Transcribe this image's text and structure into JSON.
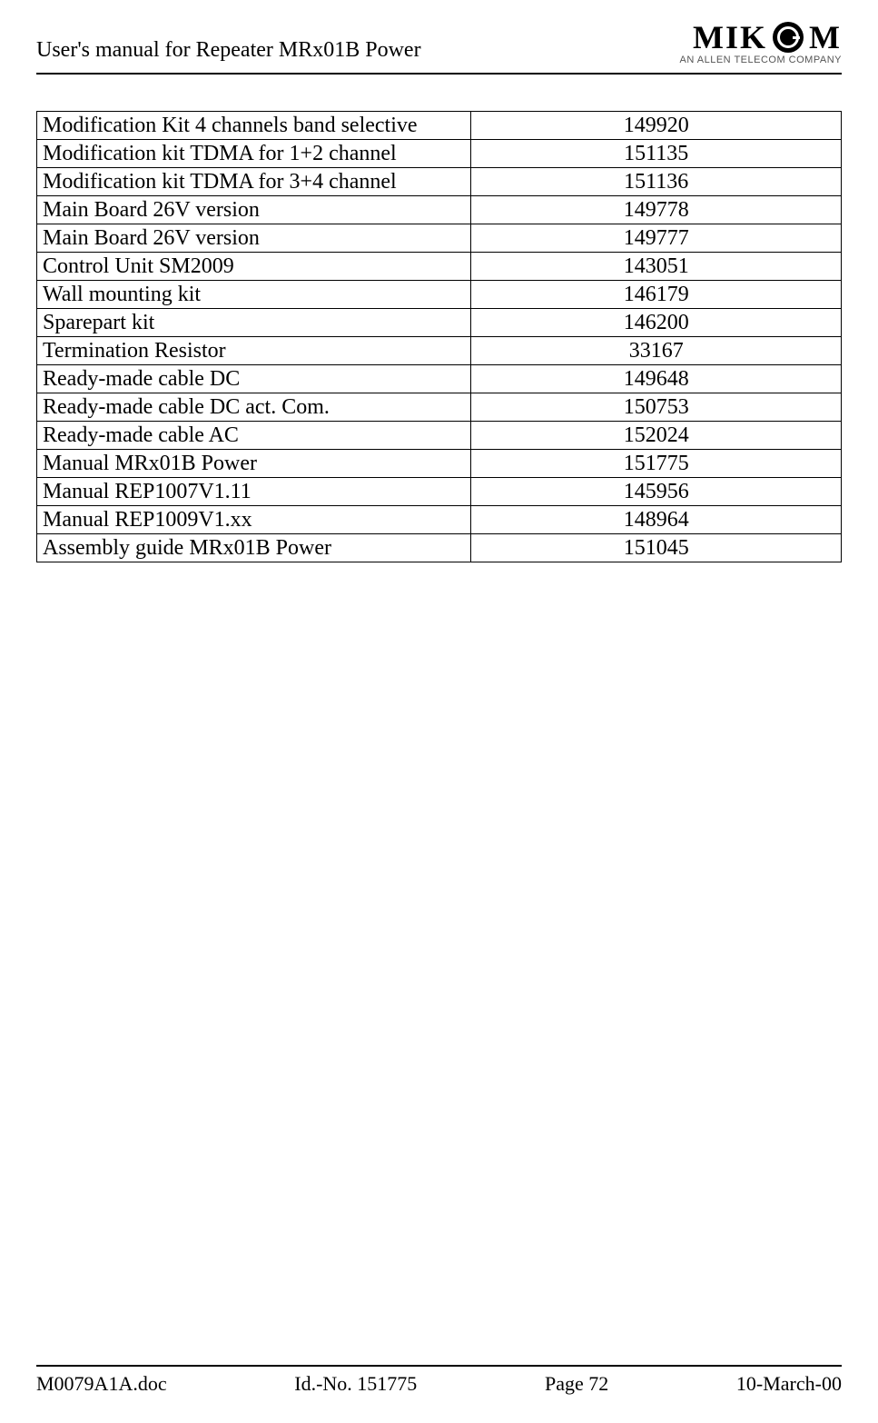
{
  "header": {
    "title": "User's manual for Repeater MRx01B Power",
    "logo_text_1": "MIK",
    "logo_text_2": "M",
    "logo_subtitle": "AN ALLEN TELECOM COMPANY"
  },
  "table": {
    "columns": [
      "description",
      "id_number"
    ],
    "col_widths": [
      "54%",
      "46%"
    ],
    "col_align": [
      "left",
      "center"
    ],
    "border_color": "#000000",
    "font_size": 24,
    "rows": [
      [
        "Modification Kit 4 channels band selective",
        "149920"
      ],
      [
        "Modification kit TDMA for 1+2 channel",
        "151135"
      ],
      [
        "Modification kit TDMA for 3+4 channel",
        "151136"
      ],
      [
        "Main Board 26V version",
        "149778"
      ],
      [
        "Main Board 26V version",
        "149777"
      ],
      [
        "Control Unit SM2009",
        "143051"
      ],
      [
        "Wall mounting kit",
        "146179"
      ],
      [
        "Sparepart kit",
        "146200"
      ],
      [
        "Termination Resistor",
        "33167"
      ],
      [
        "Ready-made cable DC",
        "149648"
      ],
      [
        "Ready-made cable DC act. Com.",
        "150753"
      ],
      [
        "Ready-made cable AC",
        "152024"
      ],
      [
        "Manual MRx01B Power",
        "151775"
      ],
      [
        "Manual REP1007V1.11",
        "145956"
      ],
      [
        "Manual REP1009V1.xx",
        "148964"
      ],
      [
        "Assembly guide MRx01B Power",
        "151045"
      ]
    ]
  },
  "footer": {
    "doc_name": "M0079A1A.doc",
    "id_no": "Id.-No. 151775",
    "page": "Page 72",
    "date": "10-March-00"
  },
  "style": {
    "background_color": "#ffffff",
    "text_color": "#000000",
    "rule_color": "#000000",
    "font_family": "Times New Roman"
  }
}
